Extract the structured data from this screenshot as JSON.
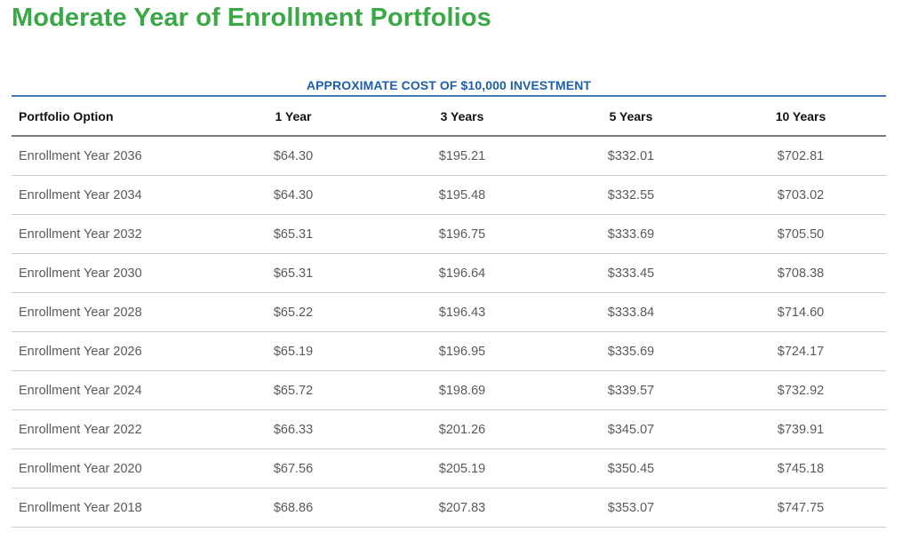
{
  "page": {
    "title": "Moderate Year of Enrollment Portfolios"
  },
  "table": {
    "caption": "APPROXIMATE COST OF $10,000 INVESTMENT",
    "headers": [
      "Portfolio Option",
      "1 Year",
      "3 Years",
      "5 Years",
      "10 Years"
    ],
    "rows": [
      [
        "Enrollment Year 2036",
        "$64.30",
        "$195.21",
        "$332.01",
        "$702.81"
      ],
      [
        "Enrollment Year 2034",
        "$64.30",
        "$195.48",
        "$332.55",
        "$703.02"
      ],
      [
        "Enrollment Year 2032",
        "$65.31",
        "$196.75",
        "$333.69",
        "$705.50"
      ],
      [
        "Enrollment Year 2030",
        "$65.31",
        "$196.64",
        "$333.45",
        "$708.38"
      ],
      [
        "Enrollment Year 2028",
        "$65.22",
        "$196.43",
        "$333.84",
        "$714.60"
      ],
      [
        "Enrollment Year 2026",
        "$65.19",
        "$196.95",
        "$335.69",
        "$724.17"
      ],
      [
        "Enrollment Year 2024",
        "$65.72",
        "$198.69",
        "$339.57",
        "$732.92"
      ],
      [
        "Enrollment Year 2022",
        "$66.33",
        "$201.26",
        "$345.07",
        "$739.91"
      ],
      [
        "Enrollment Year 2020",
        "$67.56",
        "$205.19",
        "$350.45",
        "$745.18"
      ],
      [
        "Enrollment Year 2018",
        "$68.86",
        "$207.83",
        "$353.07",
        "$747.75"
      ]
    ]
  },
  "colors": {
    "title": "#3aa846",
    "caption": "#1f5fa8",
    "caption_rule": "#3f76b8",
    "header_text": "#111111",
    "cell_text": "#5a5a5a"
  }
}
